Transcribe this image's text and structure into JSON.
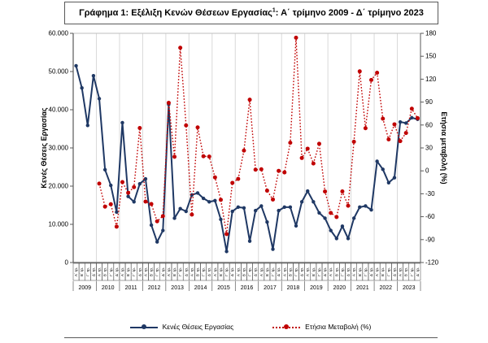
{
  "title": {
    "part1": "Γράφημα 1: Εξέλιξη Κενών Θέσεων Εργασίας",
    "footnote_marker": "1",
    "part2": ": Α΄ τρίμηνο 2009 - Δ΄ τρίμηνο 2023"
  },
  "axes": {
    "left_title": "Κενές Θέσεις Εργασίας",
    "right_title": "Ετήσια μεταβολή (%)",
    "left_tick_labels": [
      "0",
      "10.000",
      "20.000",
      "30.000",
      "40.000",
      "50.000",
      "60.000"
    ],
    "right_tick_labels": [
      "-120",
      "-90",
      "-60",
      "-30",
      "0",
      "30",
      "60",
      "90",
      "120",
      "150",
      "180"
    ]
  },
  "legend": {
    "items": [
      {
        "label": "Κενές Θέσεις Εργασίας",
        "color": "#1f3864",
        "line": "solid"
      },
      {
        "label": "Ετήσια Μεταβολή (%)",
        "color": "#c00000",
        "line": "dotted"
      }
    ]
  },
  "colors": {
    "vacancies_line": "#1f3864",
    "yoy_line": "#c00000",
    "year_gridline": "#d9d9d9",
    "axis_line": "#595959",
    "cell_border": "#404040"
  },
  "chart_data": {
    "type": "line",
    "title": "Γράφημα 1: Εξέλιξη Κενών Θέσεων Εργασίας: Α΄ τρίμηνο 2009 - Δ΄ τρίμηνο 2023",
    "x_years": [
      "2009",
      "2010",
      "2011",
      "2012",
      "2013",
      "2014",
      "2015",
      "2016",
      "2017",
      "2018",
      "2019",
      "2020",
      "2021",
      "2022",
      "2023"
    ],
    "quarters_per_year": [
      "Α΄ τρ.",
      "Β΄ τρ.",
      "Γ΄ τρ.",
      "Δ΄ τρ."
    ],
    "left_axis": {
      "title": "Κενές Θέσεις Εργασίας",
      "min": 0,
      "max": 60000,
      "step": 10000
    },
    "right_axis": {
      "title": "Ετήσια μεταβολή (%)",
      "min": -120,
      "max": 180,
      "step": 30
    },
    "grid": "vertical-by-year",
    "legend_position": "bottom",
    "series": [
      {
        "name": "Κενές Θέσεις Εργασίας",
        "axis": "left",
        "color": "#1f3864",
        "line": "solid",
        "marker": "circle",
        "values": [
          51500,
          45700,
          35900,
          48900,
          42900,
          24300,
          20200,
          13200,
          36600,
          17300,
          15900,
          20600,
          21900,
          9800,
          5400,
          8400,
          41400,
          11600,
          14100,
          13400,
          17700,
          18200,
          16800,
          15900,
          16200,
          11300,
          2900,
          13400,
          14500,
          14300,
          5600,
          13600,
          14800,
          10600,
          3500,
          13600,
          14500,
          14500,
          9600,
          15900,
          18700,
          15900,
          13000,
          11600,
          8400,
          6300,
          9500,
          6300,
          11600,
          14500,
          14800,
          13800,
          26500,
          24400,
          20900,
          22200,
          36800,
          36500,
          37900,
          37500
        ]
      },
      {
        "name": "Ετήσια Μεταβολή (%)",
        "axis": "right",
        "color": "#c00000",
        "line": "dotted",
        "marker": "circle",
        "values": [
          null,
          null,
          null,
          null,
          -16.7,
          -46.8,
          -43.7,
          -73.0,
          -14.7,
          -28.8,
          -21.3,
          56.1,
          -40.2,
          -43.4,
          -66.0,
          -59.2,
          89.0,
          18.4,
          161.1,
          59.5,
          -57.2,
          56.9,
          19.1,
          18.7,
          -8.5,
          -37.9,
          -82.7,
          -15.7,
          -10.5,
          26.5,
          93.1,
          1.5,
          2.1,
          -25.9,
          -37.5,
          0.0,
          -2.0,
          36.8,
          174.3,
          16.9,
          29.0,
          9.7,
          35.4,
          -27.0,
          -55.1,
          -60.4,
          -26.9,
          -45.7,
          38.1,
          130.2,
          55.8,
          119.0,
          128.4,
          68.3,
          41.2,
          60.9,
          38.9,
          49.6,
          81.3,
          68.9
        ]
      }
    ]
  }
}
